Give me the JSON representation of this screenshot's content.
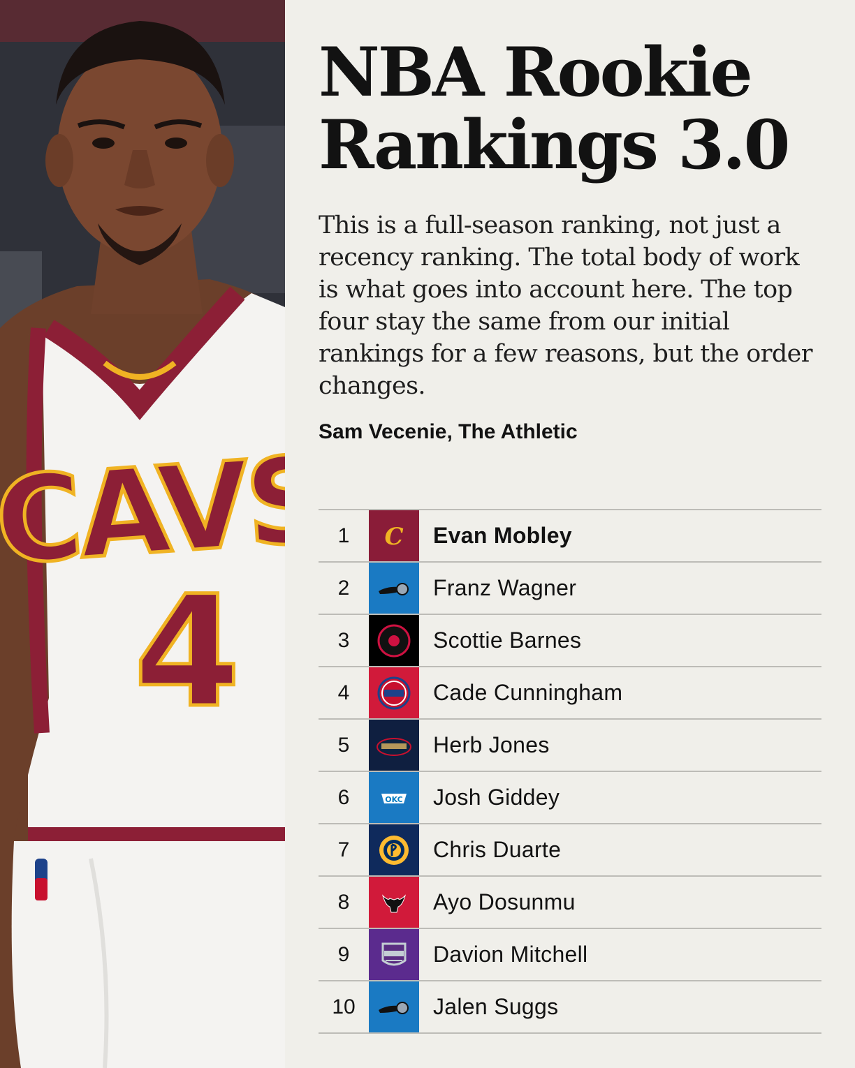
{
  "title_lines": [
    "NBA Rookie",
    "Rankings 3.0"
  ],
  "description": "This is a full-season ranking, not just a recency ranking. The total body of work is what goes into account here. The top four stay the same from our initial rankings for a few reasons, but the order changes.",
  "byline": "Sam Vecenie, The Athletic",
  "photo": {
    "jersey_wordmark": "CAVS",
    "jersey_number": "4",
    "colors": {
      "jersey": "#f4f3f1",
      "trim": "#8c1f36",
      "gold": "#f0b323"
    }
  },
  "rankings": [
    {
      "rank": "1",
      "player": "Evan Mobley",
      "team_icon": "cavaliers-logo-icon",
      "team_color": "#8a1c38",
      "highlight": true
    },
    {
      "rank": "2",
      "player": "Franz Wagner",
      "team_icon": "magic-logo-icon",
      "team_color": "#1a7ac3"
    },
    {
      "rank": "3",
      "player": "Scottie Barnes",
      "team_icon": "raptors-logo-icon",
      "team_color": "#000000"
    },
    {
      "rank": "4",
      "player": "Cade Cunningham",
      "team_icon": "pistons-logo-icon",
      "team_color": "#d11a3a"
    },
    {
      "rank": "5",
      "player": "Herb Jones",
      "team_icon": "pelicans-logo-icon",
      "team_color": "#0f1f40"
    },
    {
      "rank": "6",
      "player": "Josh Giddey",
      "team_icon": "thunder-logo-icon",
      "team_color": "#1a7ac3"
    },
    {
      "rank": "7",
      "player": "Chris Duarte",
      "team_icon": "pacers-logo-icon",
      "team_color": "#0f2a5c"
    },
    {
      "rank": "8",
      "player": "Ayo Dosunmu",
      "team_icon": "bulls-logo-icon",
      "team_color": "#d11a3a"
    },
    {
      "rank": "9",
      "player": "Davion Mitchell",
      "team_icon": "kings-logo-icon",
      "team_color": "#5b2b8e"
    },
    {
      "rank": "10",
      "player": "Jalen Suggs",
      "team_icon": "magic-logo-icon",
      "team_color": "#1a7ac3"
    }
  ]
}
